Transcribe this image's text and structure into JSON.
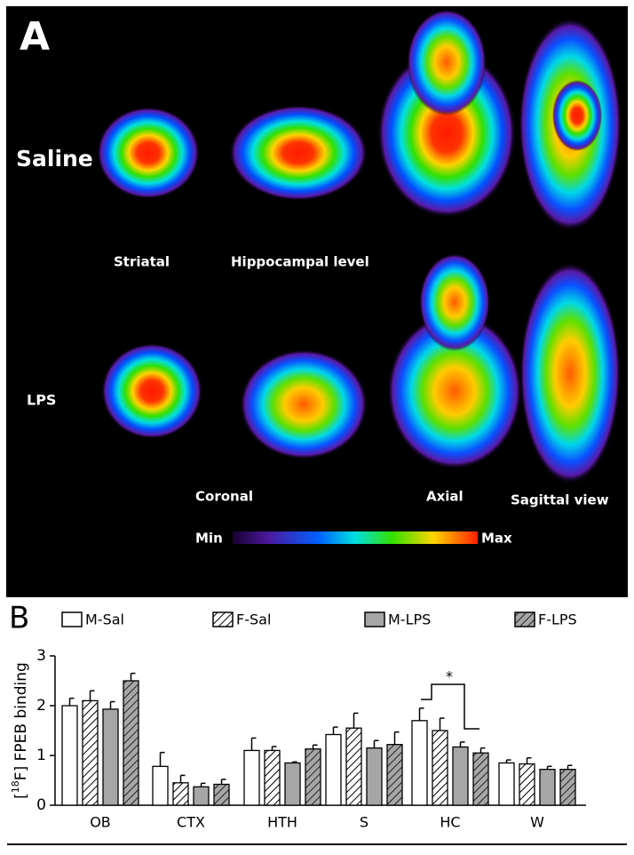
{
  "panel_a": {
    "label": "A",
    "rows": [
      "Saline",
      "LPS"
    ],
    "view_labels": [
      "Striatal",
      "Hippocampal level",
      "Coronal",
      "Axial",
      "Sagittal view"
    ],
    "colorbar": {
      "min": "Min",
      "max": "Max"
    }
  },
  "chart_data": {
    "type": "bar",
    "panel_label": "B",
    "y_label": {
      "prefix": "[",
      "superscript": "18",
      "suffix": "F] FPEB binding"
    },
    "categories": [
      "OB",
      "CTX",
      "HTH",
      "S",
      "HC",
      "W"
    ],
    "series": [
      {
        "name": "M-Sal",
        "color": "#ffffff",
        "hatched": false,
        "values": [
          2.0,
          0.78,
          1.1,
          1.42,
          1.7,
          0.85
        ],
        "errors": [
          0.15,
          0.28,
          0.25,
          0.15,
          0.25,
          0.06
        ]
      },
      {
        "name": "F-Sal",
        "color": "#ffffff",
        "hatched": true,
        "values": [
          2.1,
          0.45,
          1.1,
          1.55,
          1.5,
          0.83
        ],
        "errors": [
          0.2,
          0.15,
          0.08,
          0.3,
          0.25,
          0.12
        ]
      },
      {
        "name": "M-LPS",
        "color": "#a6a6a6",
        "hatched": false,
        "values": [
          1.93,
          0.37,
          0.85,
          1.15,
          1.17,
          0.72
        ],
        "errors": [
          0.15,
          0.07,
          0.02,
          0.15,
          0.1,
          0.06
        ]
      },
      {
        "name": "F-LPS",
        "color": "#a6a6a6",
        "hatched": true,
        "values": [
          2.5,
          0.42,
          1.13,
          1.22,
          1.05,
          0.72
        ],
        "errors": [
          0.15,
          0.1,
          0.08,
          0.25,
          0.1,
          0.08
        ]
      }
    ],
    "ylim": [
      0,
      3
    ],
    "yticks": [
      0,
      1,
      2,
      3
    ],
    "annotation": "*"
  }
}
